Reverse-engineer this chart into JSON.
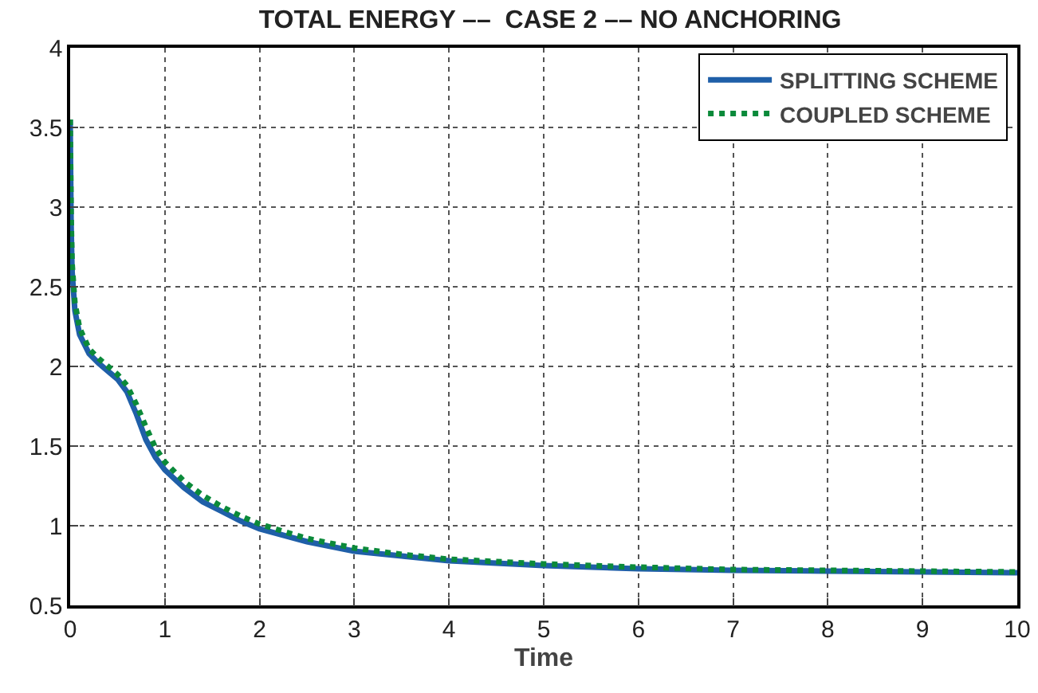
{
  "chart_data": {
    "type": "line",
    "title": "TOTAL ENERGY ––  CASE 2 –– NO ANCHORING",
    "xlabel": "Time",
    "xlim": [
      0,
      10
    ],
    "xticks": [
      0,
      1,
      2,
      3,
      4,
      5,
      6,
      7,
      8,
      9,
      10
    ],
    "ylim": [
      0.5,
      4
    ],
    "yticks": [
      0.5,
      1,
      1.5,
      2,
      2.5,
      3,
      3.5,
      4
    ],
    "grid": true,
    "legend": "top right",
    "marker": "none",
    "series": [
      {
        "name": "SPLITTING SCHEME",
        "color": "#1f5fa8",
        "line_style": "solid",
        "x": [
          0,
          0.01,
          0.02,
          0.05,
          0.1,
          0.2,
          0.3,
          0.4,
          0.5,
          0.6,
          0.7,
          0.8,
          0.9,
          1,
          1.2,
          1.4,
          1.6,
          1.8,
          2,
          2.5,
          3,
          3.5,
          4,
          5,
          6,
          7,
          8,
          9,
          10
        ],
        "values": [
          3.55,
          2.9,
          2.6,
          2.35,
          2.2,
          2.08,
          2.02,
          1.97,
          1.92,
          1.84,
          1.7,
          1.54,
          1.43,
          1.35,
          1.24,
          1.15,
          1.09,
          1.03,
          0.98,
          0.9,
          0.84,
          0.81,
          0.78,
          0.75,
          0.73,
          0.72,
          0.715,
          0.71,
          0.705
        ]
      },
      {
        "name": "COUPLED SCHEME",
        "color": "#0b8a3a",
        "line_style": "dotted",
        "x": [
          0,
          0.01,
          0.02,
          0.05,
          0.1,
          0.2,
          0.3,
          0.4,
          0.5,
          0.6,
          0.7,
          0.8,
          0.9,
          1,
          1.2,
          1.4,
          1.6,
          1.8,
          2,
          2.5,
          3,
          3.5,
          4,
          5,
          6,
          7,
          8,
          9,
          10
        ],
        "values": [
          3.55,
          2.95,
          2.65,
          2.4,
          2.24,
          2.11,
          2.05,
          2.0,
          1.95,
          1.88,
          1.76,
          1.62,
          1.49,
          1.4,
          1.28,
          1.19,
          1.12,
          1.06,
          1.01,
          0.92,
          0.86,
          0.82,
          0.79,
          0.76,
          0.74,
          0.725,
          0.72,
          0.715,
          0.71
        ]
      }
    ]
  }
}
